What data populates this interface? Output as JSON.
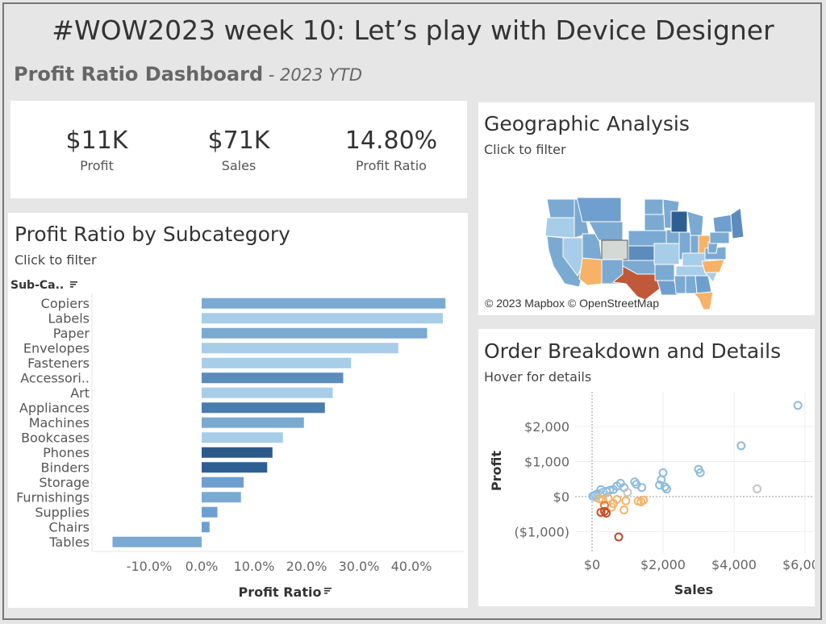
{
  "header": {
    "title": "#WOW2023 week 10: Let’s play with Device Designer",
    "subtitle": "Profit Ratio Dashboard",
    "subtitle_suffix": " - 2023 YTD"
  },
  "kpis": [
    {
      "value": "$11K",
      "label": "Profit"
    },
    {
      "value": "$71K",
      "label": "Sales"
    },
    {
      "value": "14.80%",
      "label": "Profit Ratio"
    }
  ],
  "subcategory_panel": {
    "title": "Profit Ratio by Subcategory",
    "hint": "Click to filter",
    "column_header": "Sub-Ca..",
    "sort_icon": "sort-icon"
  },
  "geo_panel": {
    "title": "Geographic Analysis",
    "hint": "Click to filter",
    "credit": "© 2023 Mapbox © OpenStreetMap"
  },
  "order_panel": {
    "title": "Order Breakdown and Details",
    "hint": "Hover for details"
  },
  "chart_data": [
    {
      "type": "bar",
      "orientation": "horizontal",
      "categories": [
        "Copiers",
        "Labels",
        "Paper",
        "Envelopes",
        "Fasteners",
        "Accessori..",
        "Art",
        "Appliances",
        "Machines",
        "Bookcases",
        "Phones",
        "Binders",
        "Storage",
        "Furnishings",
        "Supplies",
        "Chairs",
        "Tables"
      ],
      "values": [
        46.5,
        46.0,
        43.0,
        37.5,
        28.5,
        27.0,
        25.0,
        23.5,
        19.5,
        15.5,
        13.5,
        12.5,
        8.0,
        7.5,
        3.0,
        1.5,
        -17.0
      ],
      "colors": [
        "#7aaad2",
        "#a7cde8",
        "#7aaad2",
        "#a7cde8",
        "#a7cde8",
        "#5b8cbc",
        "#a7cde8",
        "#4a7cae",
        "#7aaad2",
        "#a7cde8",
        "#2b5a8a",
        "#2e5f93",
        "#6f9fcf",
        "#7aaad2",
        "#6f9fcf",
        "#6f9fcf",
        "#7aaad2"
      ],
      "xlabel": "Profit Ratio",
      "ylabel": "",
      "xlim": [
        -18,
        48
      ],
      "xticks": [
        -10,
        0,
        10,
        20,
        30,
        40
      ],
      "xtick_labels": [
        "-10.0%",
        "0.0%",
        "10.0%",
        "20.0%",
        "30.0%",
        "40.0%"
      ]
    },
    {
      "type": "scatter",
      "xlabel": "Sales",
      "ylabel": "Profit",
      "xlim": [
        -500,
        6300
      ],
      "ylim": [
        -1350,
        2800
      ],
      "xticks": [
        0,
        2000,
        4000,
        6000
      ],
      "xtick_labels": [
        "$0",
        "$2,000",
        "$4,000",
        "$6,000"
      ],
      "yticks": [
        -1000,
        0,
        1000,
        2000
      ],
      "ytick_labels": [
        "($1,000)",
        "$0",
        "$1,000",
        "$2,000"
      ],
      "gridlines": true,
      "points": [
        {
          "x": 5800,
          "y": 2600,
          "c": "#8fbcdc"
        },
        {
          "x": 4200,
          "y": 1450,
          "c": "#8fbcdc"
        },
        {
          "x": 4650,
          "y": 220,
          "c": "#c6c6c6"
        },
        {
          "x": 3000,
          "y": 780,
          "c": "#8fbcdc"
        },
        {
          "x": 3050,
          "y": 680,
          "c": "#8fbcdc"
        },
        {
          "x": 2000,
          "y": 680,
          "c": "#8fbcdc"
        },
        {
          "x": 1950,
          "y": 480,
          "c": "#8fbcdc"
        },
        {
          "x": 2050,
          "y": 280,
          "c": "#8fbcdc"
        },
        {
          "x": 1900,
          "y": 330,
          "c": "#8fbcdc"
        },
        {
          "x": 2100,
          "y": 220,
          "c": "#8fbcdc"
        },
        {
          "x": 1200,
          "y": 420,
          "c": "#8fbcdc"
        },
        {
          "x": 1250,
          "y": 350,
          "c": "#8fbcdc"
        },
        {
          "x": 1400,
          "y": 260,
          "c": "#8fbcdc"
        },
        {
          "x": 800,
          "y": 380,
          "c": "#8fbcdc"
        },
        {
          "x": 900,
          "y": 260,
          "c": "#8fbcdc"
        },
        {
          "x": 700,
          "y": 300,
          "c": "#8fbcdc"
        },
        {
          "x": 600,
          "y": 200,
          "c": "#8fbcdc"
        },
        {
          "x": 500,
          "y": 180,
          "c": "#8fbcdc"
        },
        {
          "x": 400,
          "y": 150,
          "c": "#8fbcdc"
        },
        {
          "x": 300,
          "y": 120,
          "c": "#8fbcdc"
        },
        {
          "x": 250,
          "y": 200,
          "c": "#8fbcdc"
        },
        {
          "x": 150,
          "y": 80,
          "c": "#8fbcdc"
        },
        {
          "x": 100,
          "y": 50,
          "c": "#8fbcdc"
        },
        {
          "x": 50,
          "y": 30,
          "c": "#8fbcdc"
        },
        {
          "x": 20,
          "y": 10,
          "c": "#8fbcdc"
        },
        {
          "x": 80,
          "y": -20,
          "c": "#a7cde8"
        },
        {
          "x": 350,
          "y": 80,
          "c": "#a7cde8"
        },
        {
          "x": 1000,
          "y": 120,
          "c": "#c6c6c6"
        },
        {
          "x": 1300,
          "y": -130,
          "c": "#f7b267"
        },
        {
          "x": 1450,
          "y": -100,
          "c": "#f7b267"
        },
        {
          "x": 1380,
          "y": -150,
          "c": "#f7b267"
        },
        {
          "x": 900,
          "y": -380,
          "c": "#f7b267"
        },
        {
          "x": 950,
          "y": -120,
          "c": "#f7b267"
        },
        {
          "x": 600,
          "y": -200,
          "c": "#f7b267"
        },
        {
          "x": 550,
          "y": -300,
          "c": "#f7b267"
        },
        {
          "x": 700,
          "y": -80,
          "c": "#f7b267"
        },
        {
          "x": 300,
          "y": -100,
          "c": "#f7b267"
        },
        {
          "x": 200,
          "y": -60,
          "c": "#f7b267"
        },
        {
          "x": 450,
          "y": -50,
          "c": "#f7b267"
        },
        {
          "x": 350,
          "y": -250,
          "c": "#e07b39"
        },
        {
          "x": 250,
          "y": -450,
          "c": "#c44e2a"
        },
        {
          "x": 350,
          "y": -420,
          "c": "#c44e2a"
        },
        {
          "x": 400,
          "y": -470,
          "c": "#c44e2a"
        },
        {
          "x": 750,
          "y": -1150,
          "c": "#b5472b"
        }
      ]
    }
  ]
}
